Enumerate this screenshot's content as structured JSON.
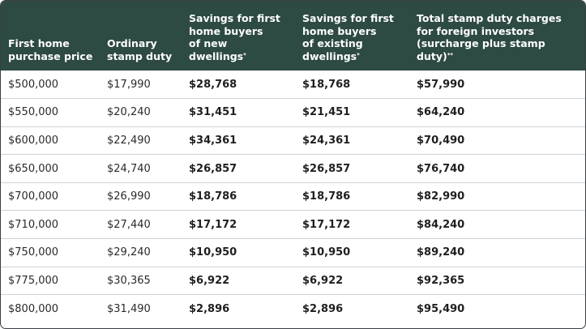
{
  "table": {
    "headers": [
      [
        "First home",
        "purchase price"
      ],
      [
        "Ordinary",
        "stamp duty"
      ],
      [
        "Savings for first",
        "home buyers",
        "of new",
        "dwellings*"
      ],
      [
        "Savings for first",
        "home buyers",
        "of existing",
        "dwellings*"
      ],
      [
        "Total stamp duty charges",
        "for foreign investors",
        "(surcharge plus stamp",
        "duty)**"
      ]
    ],
    "rows": [
      [
        "$500,000",
        "$17,990",
        "$28,768",
        "$18,768",
        "$57,990"
      ],
      [
        "$550,000",
        "$20,240",
        "$31,451",
        "$21,451",
        "$64,240"
      ],
      [
        "$600,000",
        "$22,490",
        "$34,361",
        "$24,361",
        "$70,490"
      ],
      [
        "$650,000",
        "$24,740",
        "$26,857",
        "$26,857",
        "$76,740"
      ],
      [
        "$700,000",
        "$26,990",
        "$18,786",
        "$18,786",
        "$82,990"
      ],
      [
        "$710,000",
        "$27,440",
        "$17,172",
        "$17,172",
        "$84,240"
      ],
      [
        "$750,000",
        "$29,240",
        "$10,950",
        "$10,950",
        "$89,240"
      ],
      [
        "$775,000",
        "$30,365",
        "$6,922",
        "$6,922",
        "$92,365"
      ],
      [
        "$800,000",
        "$31,490",
        "$2,896",
        "$2,896",
        "$95,490"
      ]
    ]
  },
  "colors": {
    "header_bg": "#2d4a43",
    "header_text": "#ffffff",
    "row_divider": "#cfd3d5"
  }
}
